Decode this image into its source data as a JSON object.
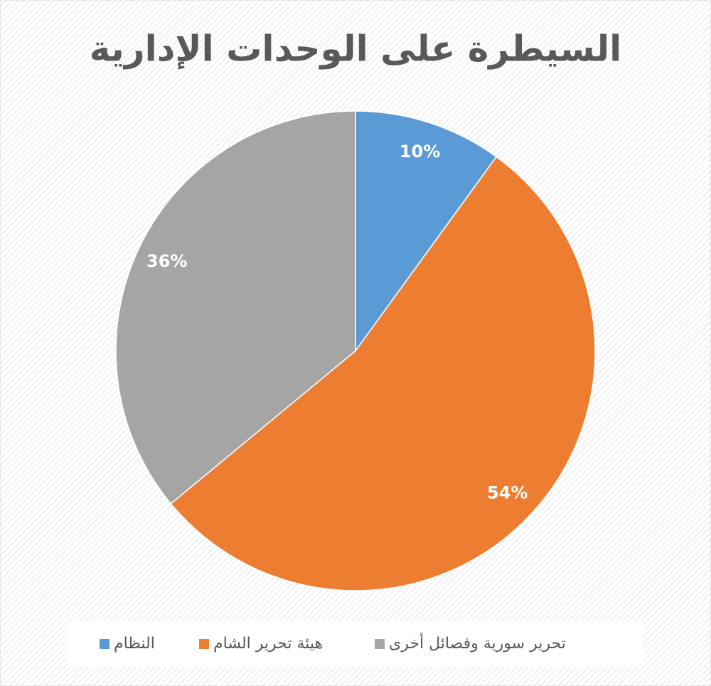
{
  "chart_data": {
    "type": "pie",
    "title": "السيطرة على الوحدات الإدارية",
    "categories": [
      "النظام",
      "هيئة تحرير الشام",
      "تحرير سورية وفصائل أخرى"
    ],
    "values": [
      10,
      54,
      36
    ],
    "value_labels": [
      "10%",
      "54%",
      "36%"
    ],
    "colors": [
      "#5b9bd5",
      "#ed7d31",
      "#a5a5a5"
    ],
    "legend": "bottom"
  }
}
